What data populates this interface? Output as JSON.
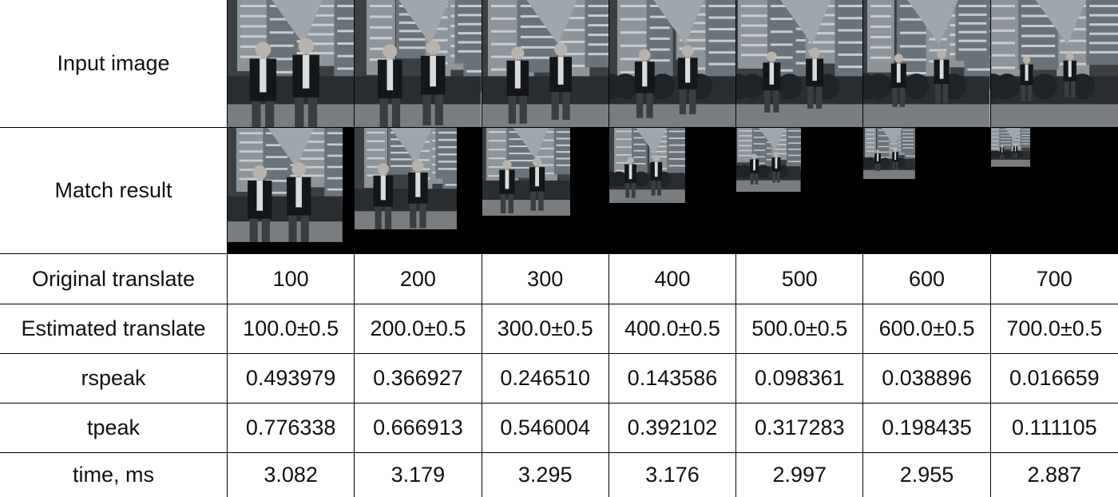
{
  "rows": {
    "input_label": "Input image",
    "match_label": "Match result",
    "original_label": "Original translate",
    "estimated_label": "Estimated translate",
    "rspeak_label": "rspeak",
    "tpeak_label": "tpeak",
    "time_label": "time, ms"
  },
  "columns": [
    {
      "original": "100",
      "estimated": "100.0±0.5",
      "rspeak": "0.493979",
      "tpeak": "0.776338",
      "time": "3.082",
      "match_scale": 0.91
    },
    {
      "original": "200",
      "estimated": "200.0±0.5",
      "rspeak": "0.366927",
      "tpeak": "0.666913",
      "time": "3.179",
      "match_scale": 0.81
    },
    {
      "original": "300",
      "estimated": "300.0±0.5",
      "rspeak": "0.246510",
      "tpeak": "0.546004",
      "time": "3.295",
      "match_scale": 0.7
    },
    {
      "original": "400",
      "estimated": "400.0±0.5",
      "rspeak": "0.143586",
      "tpeak": "0.392102",
      "time": "3.176",
      "match_scale": 0.6
    },
    {
      "original": "500",
      "estimated": "500.0±0.5",
      "rspeak": "0.098361",
      "tpeak": "0.317283",
      "time": "2.997",
      "match_scale": 0.51
    },
    {
      "original": "600",
      "estimated": "600.0±0.5",
      "rspeak": "0.038896",
      "tpeak": "0.198435",
      "time": "2.955",
      "match_scale": 0.41
    },
    {
      "original": "700",
      "estimated": "700.0±0.5",
      "rspeak": "0.016659",
      "tpeak": "0.111105",
      "time": "2.887",
      "match_scale": 0.31
    }
  ]
}
